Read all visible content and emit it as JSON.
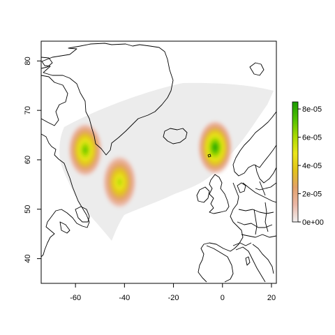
{
  "chart_data": {
    "type": "heatmap",
    "title": "",
    "xlabel": "",
    "ylabel": "",
    "xlim": [
      -74,
      22
    ],
    "ylim": [
      35,
      84
    ],
    "x_ticks": [
      -60,
      -40,
      -20,
      0,
      20
    ],
    "x_tick_labels": [
      "-60",
      "-40",
      "-20",
      "0",
      "20"
    ],
    "y_ticks": [
      40,
      50,
      60,
      70,
      80
    ],
    "y_tick_labels": [
      "40",
      "50",
      "60",
      "70",
      "80"
    ],
    "grid": false,
    "legend_placement": "right",
    "colorbar": {
      "min": 0,
      "max": 8.5e-05,
      "ticks": [
        0,
        2e-05,
        4e-05,
        6e-05,
        8e-05
      ],
      "tick_labels": [
        "0e+00",
        "2e-05",
        "4e-05",
        "6e-05",
        "8e-05"
      ],
      "colors": [
        "#f0f0f0",
        "#ebb8a8",
        "#e3a16a",
        "#e2c31a",
        "#eae51a",
        "#a9d900",
        "#4fc000",
        "#1a9a00"
      ]
    },
    "background_region_color": "#ececec",
    "density_peaks": [
      {
        "lon": -56,
        "lat": 62,
        "value": 7.5e-05
      },
      {
        "lon": -42,
        "lat": 55.5,
        "value": 5.8e-05
      },
      {
        "lon": -3,
        "lat": 62.5,
        "value": 8.3e-05
      }
    ]
  }
}
